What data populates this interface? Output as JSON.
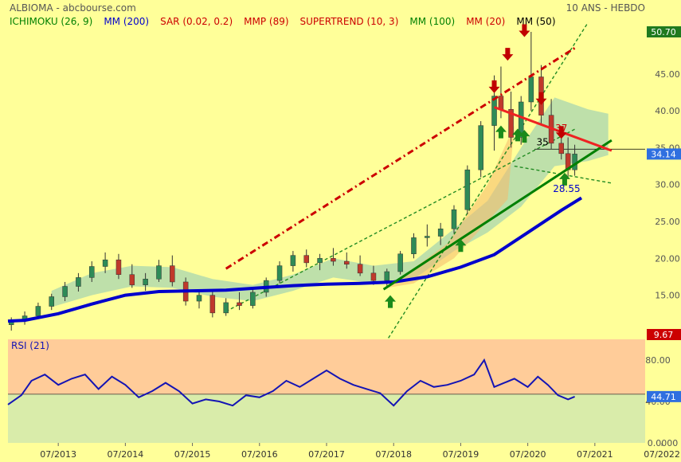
{
  "header": {
    "title": "ALBIOMA - abcbourse.com",
    "period": "10 ANS - HEBDO"
  },
  "legend": [
    {
      "label": "ICHIMOKU (26, 9)",
      "color": "#008000"
    },
    {
      "label": "MM (200)",
      "color": "#0000cc"
    },
    {
      "label": "SAR (0.02, 0.2)",
      "color": "#cc0000"
    },
    {
      "label": "MMP (89)",
      "color": "#cc0000"
    },
    {
      "label": "SUPERTREND (10, 3)",
      "color": "#cc0000"
    },
    {
      "label": "MM (100)",
      "color": "#008000"
    },
    {
      "label": "MM (20)",
      "color": "#cc0000"
    },
    {
      "label": "MM (50)",
      "color": "#000000"
    }
  ],
  "chart_data": [
    {
      "type": "candlestick",
      "title": "",
      "ylim": [
        9.67,
        50.7
      ],
      "yticks": [
        15,
        20,
        25,
        30,
        35,
        40,
        45
      ],
      "ytick_labels": [
        "15.00",
        "20.00",
        "25.00",
        "30.00",
        "35.00",
        "40.00",
        "45.00"
      ],
      "top_label": {
        "value": 50.7,
        "text": "50.70"
      },
      "bottom_label": {
        "value": 9.67,
        "text": "9.67"
      },
      "last_price": {
        "value": 34.14,
        "text": "34.14"
      },
      "x_ticks": [
        "07/2013",
        "07/2014",
        "07/2015",
        "07/2016",
        "07/2017",
        "07/2018",
        "07/2019",
        "07/2020",
        "07/2021",
        "07/2022"
      ],
      "x_range_years": [
        2012.75,
        2022.25
      ],
      "annotations": [
        {
          "text": "37",
          "x": 2021.0,
          "y": 37.2,
          "color": "#cc0000"
        },
        {
          "text": "35",
          "x": 2020.72,
          "y": 35.3,
          "color": "#000000"
        },
        {
          "text": "28.55",
          "x": 2021.08,
          "y": 29.0,
          "color": "#0000cc"
        }
      ],
      "series": [
        {
          "name": "MM (200)",
          "color": "#0000cc",
          "points": [
            [
              2012.75,
              11.5
            ],
            [
              2013.0,
              11.6
            ],
            [
              2013.5,
              12.5
            ],
            [
              2014.0,
              13.8
            ],
            [
              2014.5,
              15.0
            ],
            [
              2015.0,
              15.5
            ],
            [
              2015.5,
              15.6
            ],
            [
              2016.0,
              15.7
            ],
            [
              2016.5,
              16.0
            ],
            [
              2017.0,
              16.3
            ],
            [
              2017.5,
              16.5
            ],
            [
              2018.0,
              16.6
            ],
            [
              2018.5,
              16.8
            ],
            [
              2019.0,
              17.5
            ],
            [
              2019.5,
              18.8
            ],
            [
              2020.0,
              20.5
            ],
            [
              2020.5,
              23.5
            ],
            [
              2021.0,
              26.5
            ],
            [
              2021.3,
              28.2
            ]
          ]
        },
        {
          "name": "",
          "color": "#008000",
          "points": [
            [
              2018.35,
              15.8
            ],
            [
              2021.75,
              36.0
            ]
          ]
        },
        {
          "name": "",
          "color": "#ee2222",
          "points": [
            [
              2020.0,
              40.5
            ],
            [
              2021.75,
              34.6
            ]
          ]
        },
        {
          "name": "",
          "color": "#cc0000",
          "points": [
            [
              2016.0,
              18.6
            ],
            [
              2021.2,
              48.5
            ]
          ]
        }
      ],
      "candles": [
        [
          2012.8,
          11.0,
          12.0,
          10.2,
          11.5
        ],
        [
          2013.0,
          11.5,
          12.8,
          11.0,
          12.2
        ],
        [
          2013.2,
          12.2,
          14.0,
          11.8,
          13.5
        ],
        [
          2013.4,
          13.5,
          15.2,
          13.0,
          14.8
        ],
        [
          2013.6,
          14.8,
          16.8,
          14.2,
          16.2
        ],
        [
          2013.8,
          16.2,
          18.0,
          15.5,
          17.4
        ],
        [
          2014.0,
          17.4,
          19.6,
          16.8,
          18.9
        ],
        [
          2014.2,
          18.9,
          20.8,
          18.0,
          19.8
        ],
        [
          2014.4,
          19.8,
          20.6,
          17.2,
          17.8
        ],
        [
          2014.6,
          17.8,
          19.2,
          16.0,
          16.4
        ],
        [
          2014.8,
          16.4,
          18.0,
          15.6,
          17.2
        ],
        [
          2015.0,
          17.2,
          19.8,
          16.8,
          19.0
        ],
        [
          2015.2,
          19.0,
          20.4,
          16.2,
          16.8
        ],
        [
          2015.4,
          16.8,
          17.4,
          13.6,
          14.2
        ],
        [
          2015.6,
          14.2,
          15.8,
          13.2,
          15.0
        ],
        [
          2015.8,
          15.0,
          15.6,
          12.0,
          12.6
        ],
        [
          2016.0,
          12.6,
          14.6,
          12.2,
          14.0
        ],
        [
          2016.2,
          14.0,
          15.4,
          13.0,
          13.6
        ],
        [
          2016.4,
          13.6,
          16.0,
          13.2,
          15.4
        ],
        [
          2016.6,
          15.4,
          17.4,
          14.8,
          17.0
        ],
        [
          2016.8,
          17.0,
          19.6,
          16.6,
          19.0
        ],
        [
          2017.0,
          19.0,
          21.0,
          18.2,
          20.4
        ],
        [
          2017.2,
          20.4,
          21.2,
          18.8,
          19.4
        ],
        [
          2017.4,
          19.4,
          20.6,
          18.4,
          20.0
        ],
        [
          2017.6,
          20.0,
          21.4,
          19.0,
          19.6
        ],
        [
          2017.8,
          19.6,
          20.8,
          18.6,
          19.2
        ],
        [
          2018.0,
          19.2,
          20.4,
          17.6,
          18.0
        ],
        [
          2018.2,
          18.0,
          19.0,
          16.4,
          17.0
        ],
        [
          2018.4,
          17.0,
          18.6,
          16.2,
          18.2
        ],
        [
          2018.6,
          18.2,
          21.0,
          17.8,
          20.6
        ],
        [
          2018.8,
          20.6,
          23.4,
          20.0,
          22.8
        ],
        [
          2019.0,
          22.8,
          24.6,
          21.6,
          23.0
        ],
        [
          2019.2,
          23.0,
          24.8,
          21.8,
          24.0
        ],
        [
          2019.4,
          24.0,
          27.2,
          23.4,
          26.6
        ],
        [
          2019.6,
          26.6,
          32.6,
          26.0,
          32.0
        ],
        [
          2019.8,
          32.0,
          38.6,
          31.0,
          38.0
        ],
        [
          2020.0,
          38.0,
          44.8,
          34.6,
          42.0
        ],
        [
          2020.1,
          42.0,
          46.0,
          39.0,
          40.2
        ],
        [
          2020.25,
          40.2,
          42.6,
          35.0,
          36.4
        ],
        [
          2020.4,
          36.4,
          42.0,
          35.4,
          41.2
        ],
        [
          2020.55,
          41.2,
          50.7,
          40.0,
          44.6
        ],
        [
          2020.7,
          44.6,
          46.2,
          38.0,
          39.4
        ],
        [
          2020.85,
          39.4,
          41.6,
          34.8,
          35.6
        ],
        [
          2021.0,
          35.6,
          37.8,
          33.4,
          34.2
        ],
        [
          2021.1,
          34.2,
          36.4,
          31.0,
          32.0
        ],
        [
          2021.2,
          32.0,
          35.4,
          31.2,
          34.14
        ]
      ]
    },
    {
      "type": "line",
      "title": "RSI (21)",
      "ylim": [
        0,
        100
      ],
      "yticks": [
        40,
        80
      ],
      "ytick_labels": [
        "40.00",
        "80.00"
      ],
      "bottom_label": "0.0000",
      "threshold": 47,
      "last_value": {
        "value": 44.71,
        "text": "44.71"
      },
      "series": [
        {
          "name": "RSI (21)",
          "color": "#1414b4",
          "points": [
            [
              2012.75,
              37
            ],
            [
              2012.95,
              46
            ],
            [
              2013.1,
              60
            ],
            [
              2013.3,
              66
            ],
            [
              2013.5,
              56
            ],
            [
              2013.7,
              62
            ],
            [
              2013.9,
              66
            ],
            [
              2014.1,
              52
            ],
            [
              2014.3,
              64
            ],
            [
              2014.5,
              56
            ],
            [
              2014.7,
              44
            ],
            [
              2014.9,
              50
            ],
            [
              2015.1,
              58
            ],
            [
              2015.3,
              50
            ],
            [
              2015.5,
              38
            ],
            [
              2015.7,
              42
            ],
            [
              2015.9,
              40
            ],
            [
              2016.1,
              36
            ],
            [
              2016.3,
              46
            ],
            [
              2016.5,
              44
            ],
            [
              2016.7,
              50
            ],
            [
              2016.9,
              60
            ],
            [
              2017.1,
              54
            ],
            [
              2017.3,
              62
            ],
            [
              2017.5,
              70
            ],
            [
              2017.7,
              62
            ],
            [
              2017.9,
              56
            ],
            [
              2018.1,
              52
            ],
            [
              2018.3,
              48
            ],
            [
              2018.5,
              36
            ],
            [
              2018.7,
              50
            ],
            [
              2018.9,
              60
            ],
            [
              2019.1,
              54
            ],
            [
              2019.3,
              56
            ],
            [
              2019.5,
              60
            ],
            [
              2019.7,
              66
            ],
            [
              2019.85,
              80
            ],
            [
              2020.0,
              54
            ],
            [
              2020.15,
              58
            ],
            [
              2020.3,
              62
            ],
            [
              2020.5,
              54
            ],
            [
              2020.65,
              64
            ],
            [
              2020.8,
              56
            ],
            [
              2020.95,
              46
            ],
            [
              2021.1,
              42
            ],
            [
              2021.2,
              44.71
            ]
          ]
        }
      ]
    }
  ]
}
